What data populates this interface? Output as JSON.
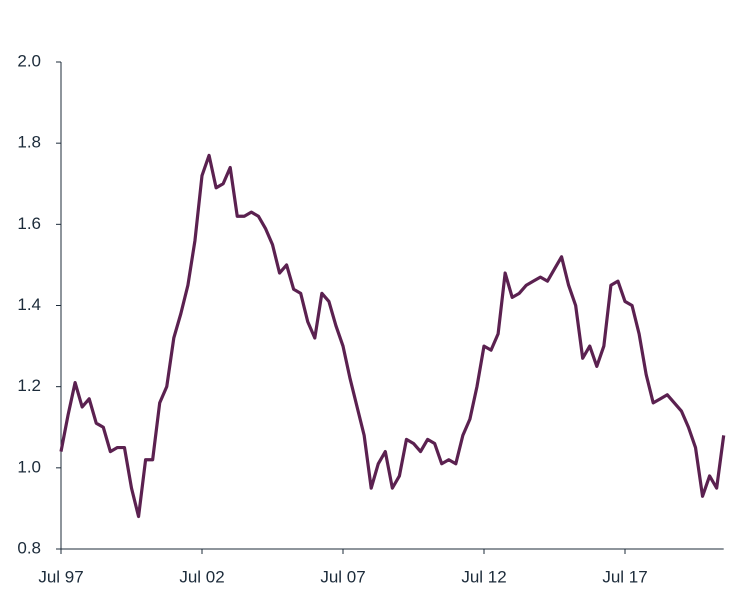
{
  "chart_data": {
    "type": "line",
    "color": "#5b2150",
    "categories": [
      "Jul 97",
      null,
      null,
      null,
      null,
      null,
      null,
      null,
      null,
      null,
      null,
      null,
      null,
      null,
      null,
      null,
      null,
      null,
      null,
      null,
      "Jul 02",
      null,
      null,
      null,
      null,
      null,
      null,
      null,
      null,
      null,
      null,
      null,
      null,
      null,
      null,
      null,
      null,
      null,
      null,
      null,
      "Jul 07",
      null,
      null,
      null,
      null,
      null,
      null,
      null,
      null,
      null,
      null,
      null,
      null,
      null,
      null,
      null,
      null,
      null,
      null,
      null,
      "Jul 12",
      null,
      null,
      null,
      null,
      null,
      null,
      null,
      null,
      null,
      null,
      null,
      null,
      null,
      null,
      null,
      null,
      null,
      null,
      null,
      "Jul 17",
      null,
      null,
      null,
      null,
      null,
      null,
      null,
      null,
      null,
      null,
      null,
      null,
      null,
      null
    ],
    "values": [
      1.04,
      1.13,
      1.21,
      1.15,
      1.17,
      1.11,
      1.1,
      1.04,
      1.05,
      1.05,
      0.95,
      0.88,
      1.02,
      1.02,
      1.16,
      1.2,
      1.32,
      1.38,
      1.45,
      1.56,
      1.72,
      1.77,
      1.69,
      1.7,
      1.74,
      1.62,
      1.62,
      1.63,
      1.62,
      1.59,
      1.55,
      1.48,
      1.5,
      1.44,
      1.43,
      1.36,
      1.32,
      1.43,
      1.41,
      1.35,
      1.3,
      1.22,
      1.15,
      1.08,
      0.95,
      1.01,
      1.04,
      0.95,
      0.98,
      1.07,
      1.06,
      1.04,
      1.07,
      1.06,
      1.01,
      1.02,
      1.01,
      1.08,
      1.12,
      1.2,
      1.3,
      1.29,
      1.33,
      1.48,
      1.42,
      1.43,
      1.45,
      1.46,
      1.47,
      1.46,
      1.49,
      1.52,
      1.45,
      1.4,
      1.27,
      1.3,
      1.25,
      1.3,
      1.45,
      1.46,
      1.41,
      1.4,
      1.33,
      1.23,
      1.16,
      1.17,
      1.18,
      1.16,
      1.14,
      1.1,
      1.05,
      0.93,
      0.98,
      0.95,
      1.08
    ],
    "ylim": [
      0.8,
      2.0
    ],
    "yticks": [
      0.8,
      {
        "value": 1.0,
        "label": "1.0"
      },
      1.2,
      1.4,
      1.6,
      1.8,
      {
        "value": 2.0,
        "label": "2.0"
      }
    ]
  }
}
